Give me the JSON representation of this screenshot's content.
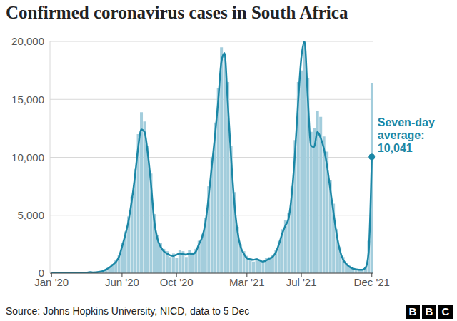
{
  "chart_data": {
    "type": "bar",
    "title": "Confirmed coronavirus cases in South Africa",
    "source": "Source: Johns Hopkins University, NICD, data to 5 Dec",
    "logo": "BBC",
    "categories": [
      "Jan '20",
      null,
      null,
      null,
      null,
      null,
      null,
      null,
      null,
      null,
      null,
      null,
      null,
      null,
      null,
      null,
      null,
      null,
      null,
      null,
      null,
      null,
      "Jun '20",
      null,
      null,
      null,
      null,
      null,
      null,
      null,
      null,
      null,
      null,
      null,
      null,
      null,
      null,
      null,
      null,
      "Oct '20",
      null,
      null,
      null,
      null,
      null,
      null,
      null,
      null,
      null,
      null,
      null,
      null,
      null,
      null,
      null,
      null,
      null,
      null,
      null,
      null,
      null,
      "Mar '21",
      null,
      null,
      null,
      null,
      null,
      null,
      null,
      null,
      null,
      null,
      null,
      null,
      null,
      null,
      null,
      null,
      "Jul '21",
      null,
      null,
      null,
      null,
      null,
      null,
      null,
      null,
      null,
      null,
      null,
      null,
      null,
      null,
      null,
      null,
      null,
      null,
      null,
      null,
      null,
      "Dec '21"
    ],
    "series": [
      {
        "type": "bar",
        "color": "#a3cddc",
        "values": [
          0,
          0,
          0,
          0,
          0,
          0,
          0,
          0,
          0,
          0,
          10,
          60,
          120,
          50,
          90,
          150,
          200,
          350,
          500,
          800,
          1100,
          1600,
          2600,
          3600,
          4900,
          6600,
          9000,
          12000,
          13900,
          13100,
          11000,
          8600,
          5100,
          3300,
          2600,
          2100,
          1900,
          1400,
          1700,
          1300,
          2000,
          1900,
          1400,
          2000,
          1800,
          2100,
          2800,
          3400,
          4800,
          7500,
          10000,
          13000,
          16000,
          19500,
          18500,
          16500,
          11000,
          7000,
          4000,
          2500,
          1900,
          1500,
          1300,
          1000,
          1300,
          1200,
          900,
          1300,
          1400,
          1600,
          2000,
          2800,
          3800,
          4600,
          5200,
          7500,
          11500,
          16500,
          17500,
          19800,
          16800,
          12200,
          12500,
          14000,
          13500,
          11800,
          10500,
          8000,
          6000,
          3800,
          2300,
          1400,
          900,
          650,
          450,
          380,
          350,
          320,
          550,
          2800,
          16400
        ]
      },
      {
        "type": "line",
        "color": "#1b87a6",
        "values": [
          0,
          0,
          0,
          0,
          0,
          0,
          0,
          0,
          0,
          0,
          5,
          40,
          100,
          60,
          70,
          120,
          180,
          320,
          480,
          700,
          950,
          1400,
          2300,
          3300,
          4500,
          6200,
          8300,
          10800,
          12400,
          12200,
          10400,
          7800,
          4600,
          3000,
          2300,
          1900,
          1700,
          1550,
          1500,
          1600,
          1700,
          1650,
          1600,
          1700,
          1650,
          1850,
          2500,
          3100,
          4300,
          6500,
          9200,
          11800,
          14800,
          18200,
          19000,
          14800,
          10200,
          6300,
          3700,
          2300,
          1700,
          1300,
          1200,
          1150,
          1200,
          1100,
          1000,
          1100,
          1250,
          1400,
          1800,
          2500,
          3400,
          4100,
          4700,
          6800,
          10300,
          14800,
          18600,
          20000,
          15200,
          11000,
          10900,
          12200,
          11700,
          10800,
          9300,
          7300,
          5300,
          3400,
          2000,
          1200,
          800,
          550,
          400,
          330,
          300,
          300,
          450,
          1800,
          10041
        ]
      }
    ],
    "ylim": [
      0,
      20000
    ],
    "yticks": [
      0,
      {
        "value": 5000,
        "label": "5,000"
      },
      {
        "value": 10000,
        "label": "10,000"
      },
      {
        "value": 15000,
        "label": "15,000"
      },
      {
        "value": 20000,
        "label": "20,000"
      }
    ],
    "grid": true,
    "annotation": {
      "text": "Seven-day average:",
      "value": 10041,
      "label": "10,041",
      "color": "#1b87a6"
    }
  }
}
